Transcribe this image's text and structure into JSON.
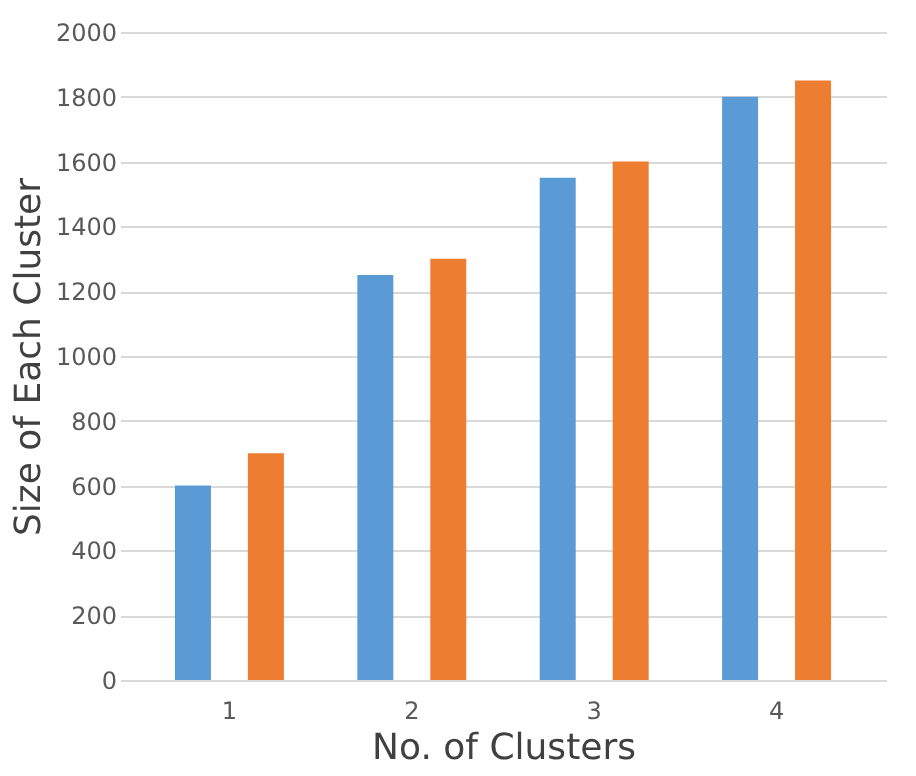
{
  "chart_data": {
    "type": "bar",
    "xlabel": "No. of Clusters",
    "ylabel": "Size of Each Cluster",
    "categories": [
      "1",
      "2",
      "3",
      "4"
    ],
    "series": [
      {
        "color": "#5b9bd5",
        "values": [
          600,
          1250,
          1550,
          1800
        ]
      },
      {
        "color": "#ed7d31",
        "values": [
          700,
          1300,
          1600,
          1850
        ]
      }
    ],
    "ylim": [
      0,
      2000
    ],
    "yticks": [
      0,
      200,
      400,
      600,
      800,
      1000,
      1200,
      1400,
      1600,
      1800,
      2000
    ],
    "grid": "y",
    "legend": false
  }
}
